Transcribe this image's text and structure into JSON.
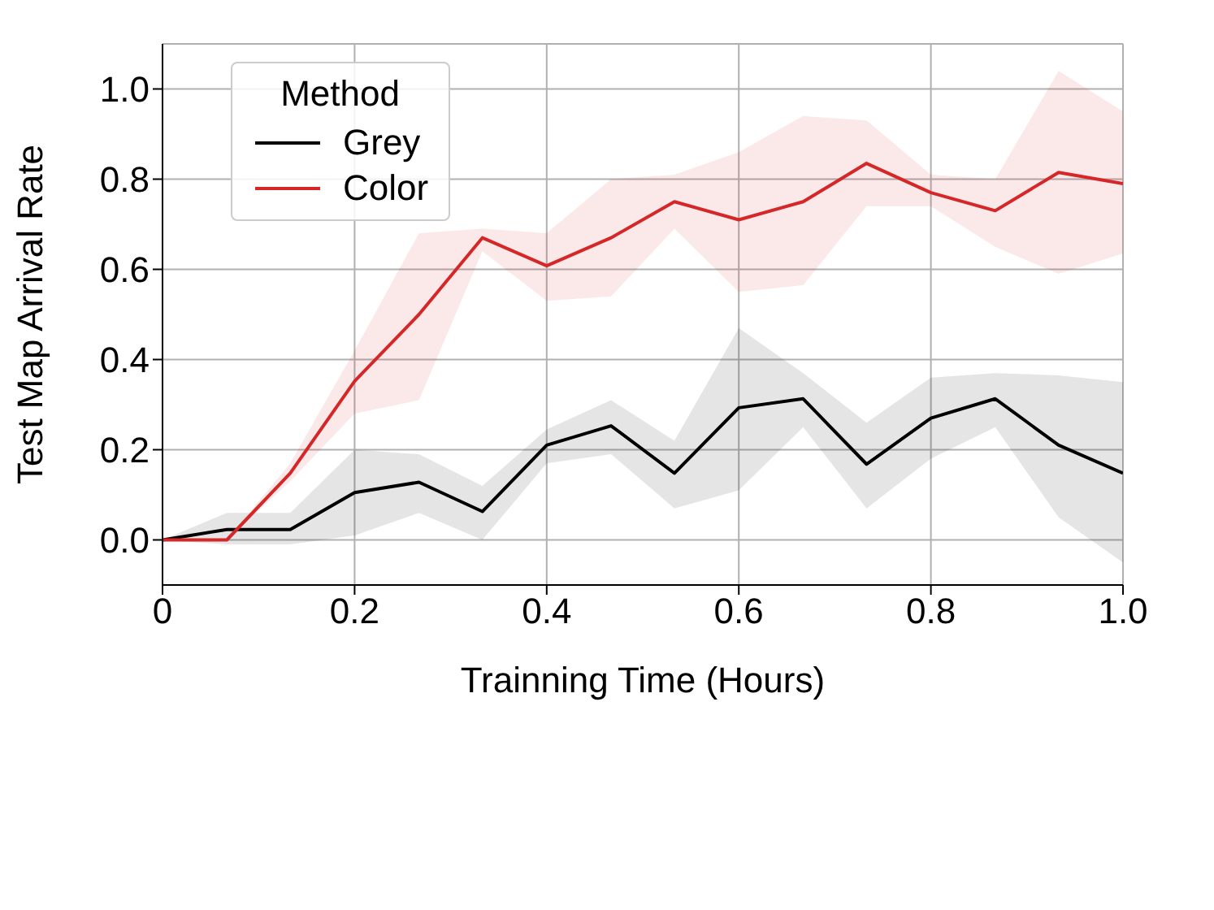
{
  "chart_data": {
    "type": "line",
    "xlabel": "Trainning Time (Hours)",
    "ylabel": "Test Map Arrival Rate",
    "legend_title": "Method",
    "legend": "top left",
    "grid": true,
    "marker": "none",
    "line_style": "solid",
    "x": [
      0,
      0.067,
      0.133,
      0.2,
      0.267,
      0.333,
      0.4,
      0.467,
      0.533,
      0.6,
      0.667,
      0.733,
      0.8,
      0.867,
      0.933,
      1.0
    ],
    "xlim": [
      0,
      1.0
    ],
    "xticks": [
      0,
      {
        "value": 0.2,
        "label": "0.2"
      },
      {
        "value": 0.4,
        "label": "0.4"
      },
      {
        "value": 0.6,
        "label": "0.6"
      },
      {
        "value": 0.8,
        "label": "0.8"
      },
      {
        "value": 1.0,
        "label": "1.0"
      }
    ],
    "ylim": [
      -0.1,
      1.1
    ],
    "yticks": [
      {
        "value": 0,
        "label": "0.0"
      },
      {
        "value": 0.2,
        "label": "0.2"
      },
      {
        "value": 0.4,
        "label": "0.4"
      },
      {
        "value": 0.6,
        "label": "0.6"
      },
      {
        "value": 0.8,
        "label": "0.8"
      },
      {
        "value": 1.0,
        "label": "1.0"
      }
    ],
    "series": [
      {
        "name": "Grey",
        "color": "#000000",
        "values": [
          0,
          0.023,
          0.023,
          0.105,
          0.128,
          0.063,
          0.21,
          0.253,
          0.148,
          0.293,
          0.313,
          0.168,
          0.27,
          0.313,
          0.21,
          0.148
        ],
        "lower": [
          0,
          -0.01,
          -0.01,
          0.01,
          0.06,
          0.0,
          0.17,
          0.19,
          0.07,
          0.11,
          0.25,
          0.07,
          0.18,
          0.25,
          0.05,
          -0.05
        ],
        "upper": [
          0,
          0.06,
          0.06,
          0.2,
          0.19,
          0.12,
          0.245,
          0.31,
          0.22,
          0.47,
          0.37,
          0.26,
          0.36,
          0.37,
          0.365,
          0.35
        ]
      },
      {
        "name": "Color",
        "color": "#d62728",
        "values": [
          0,
          0,
          0.148,
          0.352,
          0.5,
          0.67,
          0.608,
          0.67,
          0.75,
          0.71,
          0.75,
          0.835,
          0.77,
          0.73,
          0.815,
          0.79
        ],
        "lower": [
          0,
          0,
          0.13,
          0.28,
          0.31,
          0.64,
          0.53,
          0.54,
          0.69,
          0.55,
          0.565,
          0.74,
          0.74,
          0.65,
          0.59,
          0.635
        ],
        "upper": [
          0,
          0,
          0.17,
          0.42,
          0.68,
          0.69,
          0.68,
          0.8,
          0.81,
          0.86,
          0.94,
          0.93,
          0.81,
          0.8,
          1.04,
          0.95
        ]
      }
    ]
  }
}
